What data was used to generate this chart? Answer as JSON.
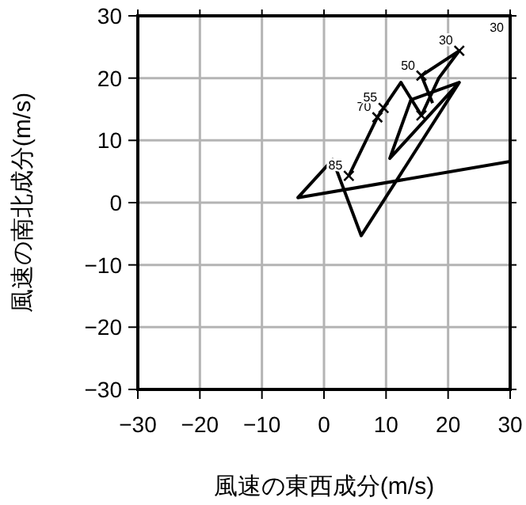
{
  "chart_data": {
    "type": "line",
    "xlabel": "風速の東西成分(m/s)",
    "ylabel": "風速の南北成分(m/s)",
    "xlim": [
      -30,
      30
    ],
    "ylim": [
      -30,
      30
    ],
    "xticks": [
      -30,
      -20,
      -10,
      0,
      10,
      20,
      30
    ],
    "yticks": [
      -30,
      -20,
      -10,
      0,
      10,
      20,
      30
    ],
    "grid": true,
    "series": [
      {
        "color": "#000000",
        "x": [
          30,
          -4.2,
          1.4,
          6.0,
          21.8,
          10.6,
          14.0,
          21.8
        ],
        "values": [
          6.6,
          0.8,
          6.9,
          -5.3,
          19.3,
          7.1,
          16.5,
          19.3
        ]
      },
      {
        "color": "#000000",
        "x": [
          4.0,
          8.6,
          9.6,
          12.4,
          15.7,
          18.5,
          21.8,
          15.7,
          17.5
        ],
        "values": [
          4.3,
          13.7,
          15.2,
          19.3,
          14.0,
          20.0,
          24.4,
          20.4,
          16.0
        ]
      },
      {
        "type": "scatter",
        "marker": "cross",
        "color": "#000000",
        "x": [
          4.0,
          8.6,
          9.6,
          15.7,
          21.8,
          15.7
        ],
        "values": [
          4.3,
          13.7,
          15.2,
          14.0,
          24.4,
          20.4
        ]
      }
    ],
    "annotations": [
      {
        "text": "85",
        "x": 4.0,
        "y": 4.3
      },
      {
        "text": "70",
        "x": 8.6,
        "y": 13.7
      },
      {
        "text": "55",
        "x": 9.6,
        "y": 15.2
      },
      {
        "text": "50",
        "x": 15.7,
        "y": 20.4
      },
      {
        "text": "30",
        "x": 21.8,
        "y": 24.4
      },
      "30"
    ]
  }
}
